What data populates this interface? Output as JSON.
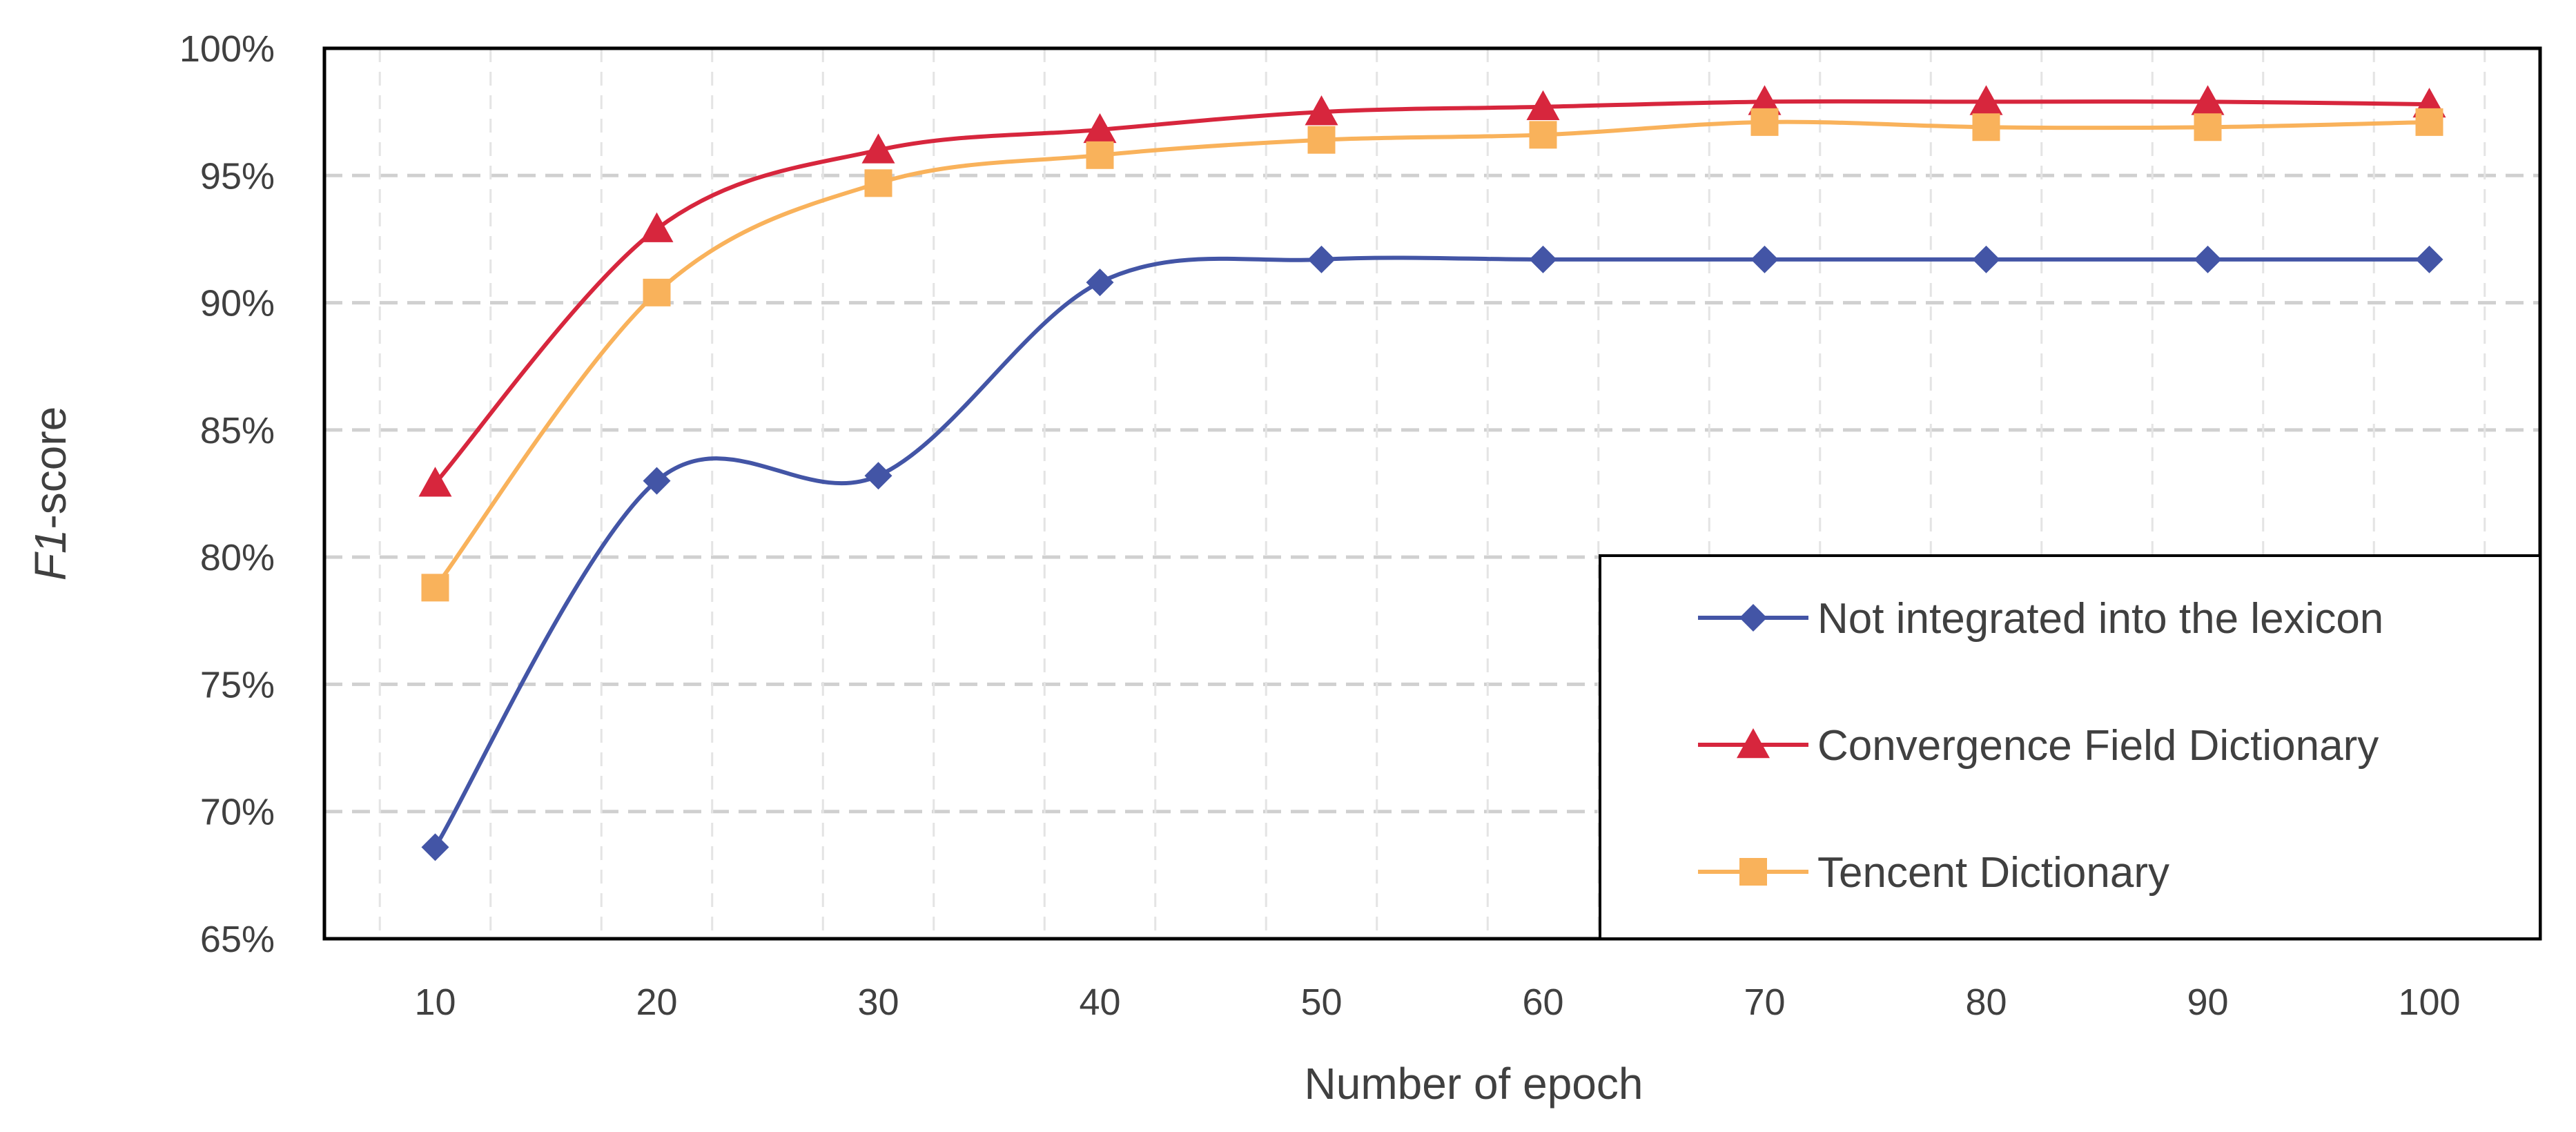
{
  "chart_data": {
    "type": "line",
    "title": "",
    "xlabel": "Number of epoch",
    "ylabel": {
      "italic_part": "F1",
      "rest": "-score"
    },
    "x": [
      10,
      20,
      30,
      40,
      50,
      60,
      70,
      80,
      90,
      100
    ],
    "ylim": [
      0.65,
      1.0
    ],
    "y_ticks": [
      0.65,
      0.7,
      0.75,
      0.8,
      0.85,
      0.9,
      0.95,
      1.0
    ],
    "y_tick_labels": [
      "65%",
      "70%",
      "75%",
      "80%",
      "85%",
      "90%",
      "95%",
      "100%"
    ],
    "x_tick_labels": [
      "10",
      "20",
      "30",
      "40",
      "50",
      "60",
      "70",
      "80",
      "90",
      "100"
    ],
    "grid": true,
    "legend_position": "bottom-right",
    "series": [
      {
        "name": "Not integrated into the lexicon",
        "color": "#4355a6",
        "marker": "diamond",
        "values": [
          0.686,
          0.83,
          0.832,
          0.908,
          0.917,
          0.917,
          0.917,
          0.917,
          0.917,
          0.917
        ]
      },
      {
        "name": "Convergence Field Dictionary",
        "color": "#d7263d",
        "marker": "triangle",
        "values": [
          0.829,
          0.929,
          0.96,
          0.968,
          0.975,
          0.977,
          0.979,
          0.979,
          0.979,
          0.978
        ]
      },
      {
        "name": "Tencent Dictionary",
        "color": "#f9b25b",
        "marker": "square",
        "values": [
          0.788,
          0.904,
          0.947,
          0.958,
          0.964,
          0.966,
          0.971,
          0.969,
          0.969,
          0.971
        ]
      }
    ]
  }
}
